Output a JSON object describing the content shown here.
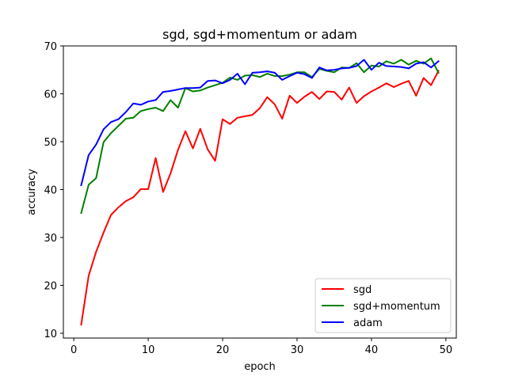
{
  "chart_data": {
    "type": "line",
    "title": "sgd, sgd+momentum or adam",
    "xlabel": "epoch",
    "ylabel": "accuracy",
    "xlim": [
      -1.4,
      51.4
    ],
    "ylim": [
      9,
      70
    ],
    "xticks": [
      0,
      10,
      20,
      30,
      40,
      50
    ],
    "yticks": [
      10,
      20,
      30,
      40,
      50,
      60,
      70
    ],
    "grid": false,
    "legend_position": "lower-right",
    "x": [
      1,
      2,
      3,
      4,
      5,
      6,
      7,
      8,
      9,
      10,
      11,
      12,
      13,
      14,
      15,
      16,
      17,
      18,
      19,
      20,
      21,
      22,
      23,
      24,
      25,
      26,
      27,
      28,
      29,
      30,
      31,
      32,
      33,
      34,
      35,
      36,
      37,
      38,
      39,
      40,
      41,
      42,
      43,
      44,
      45,
      46,
      47,
      48,
      49
    ],
    "series": [
      {
        "name": "sgd",
        "color": "#ff0000",
        "values": [
          11.8,
          22.0,
          27.0,
          31.0,
          34.7,
          36.3,
          37.6,
          38.4,
          40.1,
          40.1,
          46.6,
          39.5,
          43.4,
          48.3,
          52.2,
          48.6,
          52.7,
          48.4,
          46.0,
          54.7,
          53.7,
          55.0,
          55.3,
          55.6,
          57.0,
          59.3,
          57.8,
          54.8,
          59.6,
          58.1,
          59.4,
          60.4,
          58.9,
          60.5,
          60.4,
          58.8,
          61.3,
          58.1,
          59.5,
          60.5,
          61.3,
          62.2,
          61.4,
          62.1,
          62.7,
          59.6,
          63.3,
          61.8,
          64.8
        ]
      },
      {
        "name": "sgd+momentum",
        "color": "#008000",
        "values": [
          35.1,
          41.0,
          42.4,
          49.9,
          51.8,
          53.3,
          54.8,
          55.0,
          56.4,
          56.8,
          57.1,
          56.4,
          58.7,
          57.1,
          61.2,
          60.5,
          60.7,
          61.3,
          61.8,
          62.3,
          63.4,
          62.9,
          63.8,
          63.9,
          63.5,
          64.2,
          63.7,
          63.7,
          64.0,
          64.5,
          64.5,
          63.5,
          65.2,
          64.8,
          64.5,
          65.5,
          65.4,
          66.4,
          64.5,
          65.9,
          65.7,
          66.8,
          66.3,
          67.1,
          66.1,
          66.9,
          66.3,
          67.4,
          64.4
        ]
      },
      {
        "name": "adam",
        "color": "#0000ff",
        "values": [
          40.9,
          47.2,
          49.4,
          52.6,
          54.1,
          54.7,
          56.2,
          58.0,
          57.7,
          58.4,
          58.7,
          60.4,
          60.6,
          60.9,
          61.2,
          61.2,
          61.3,
          62.7,
          62.8,
          62.2,
          62.9,
          64.2,
          62.0,
          64.4,
          64.5,
          64.7,
          64.4,
          62.9,
          63.7,
          64.4,
          64.1,
          63.3,
          65.5,
          64.9,
          65.0,
          65.3,
          65.4,
          65.8,
          67.1,
          65.0,
          66.5,
          65.8,
          65.7,
          65.6,
          65.3,
          66.3,
          66.6,
          65.5,
          66.8
        ]
      }
    ]
  }
}
